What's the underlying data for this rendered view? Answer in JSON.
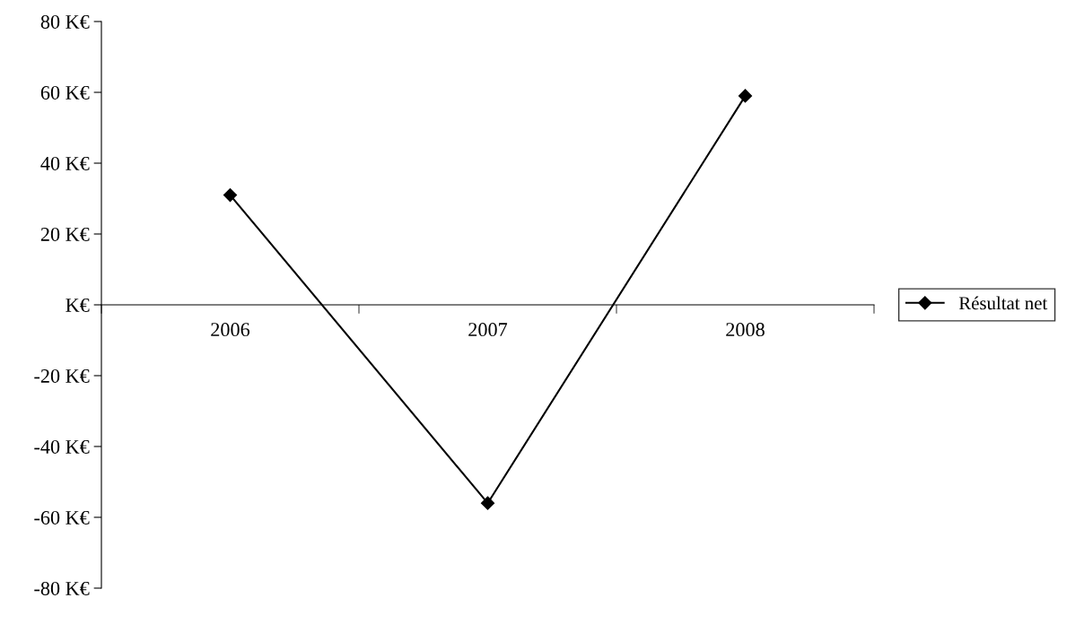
{
  "chart_data": {
    "type": "line",
    "categories": [
      "2006",
      "2007",
      "2008"
    ],
    "series": [
      {
        "name": "Résultat net",
        "color": "#000000",
        "values": [
          31,
          -56,
          59
        ]
      }
    ],
    "ylim": [
      -80,
      80
    ],
    "yticks": [
      {
        "value": -80,
        "label": "-80 K€"
      },
      {
        "value": -60,
        "label": "-60 K€"
      },
      {
        "value": -40,
        "label": "-40 K€"
      },
      {
        "value": -20,
        "label": "-20 K€"
      },
      {
        "value": 0,
        "label": "K€"
      },
      {
        "value": 20,
        "label": "20 K€"
      },
      {
        "value": 40,
        "label": "40 K€"
      },
      {
        "value": 60,
        "label": "60 K€"
      },
      {
        "value": 80,
        "label": "80 K€"
      }
    ],
    "marker": "diamond",
    "line_style": "solid",
    "grid": false,
    "legend": "right"
  }
}
